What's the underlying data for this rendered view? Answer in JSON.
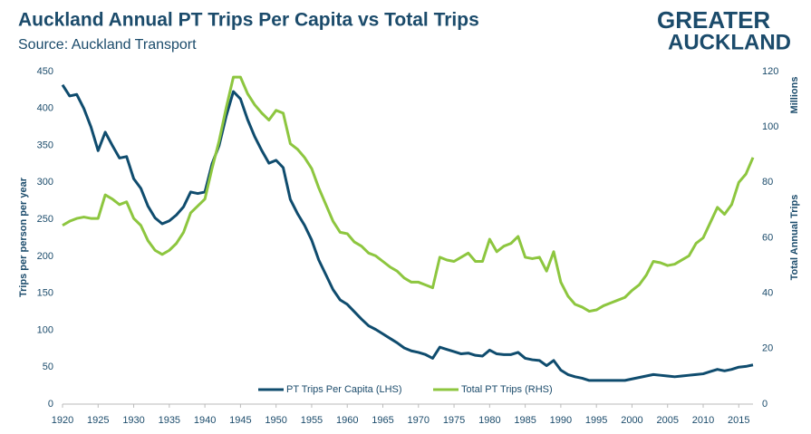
{
  "chart_data": {
    "type": "line",
    "title": "Auckland Annual PT Trips Per Capita vs Total Trips",
    "subtitle": "Source: Auckland Transport",
    "logo": [
      "GREATER",
      "AUCKLAND"
    ],
    "y_label": "Trips per person per year",
    "y2_label": "Total Annual Trips",
    "y2_unit": "Millions",
    "legend": "bottom",
    "grid": false,
    "x": [
      1920,
      1921,
      1922,
      1923,
      1924,
      1925,
      1926,
      1927,
      1928,
      1929,
      1930,
      1931,
      1932,
      1933,
      1934,
      1935,
      1936,
      1937,
      1938,
      1939,
      1940,
      1941,
      1942,
      1943,
      1944,
      1945,
      1946,
      1947,
      1948,
      1949,
      1950,
      1951,
      1952,
      1953,
      1954,
      1955,
      1956,
      1957,
      1958,
      1959,
      1960,
      1961,
      1962,
      1963,
      1964,
      1965,
      1966,
      1967,
      1968,
      1969,
      1970,
      1971,
      1972,
      1973,
      1974,
      1975,
      1976,
      1977,
      1978,
      1979,
      1980,
      1981,
      1982,
      1983,
      1984,
      1985,
      1986,
      1987,
      1988,
      1989,
      1990,
      1991,
      1992,
      1993,
      1994,
      1995,
      1996,
      1997,
      1998,
      1999,
      2000,
      2001,
      2002,
      2003,
      2004,
      2005,
      2006,
      2007,
      2008,
      2009,
      2010,
      2011,
      2012,
      2013,
      2014,
      2015,
      2016,
      2017
    ],
    "xlim": [
      1920,
      2017
    ],
    "xticks": [
      1920,
      1925,
      1930,
      1935,
      1940,
      1945,
      1950,
      1955,
      1960,
      1965,
      1970,
      1975,
      1980,
      1985,
      1990,
      1995,
      2000,
      2005,
      2010,
      2015
    ],
    "ylim": [
      0,
      450
    ],
    "yticks": [
      0,
      50,
      100,
      150,
      200,
      250,
      300,
      350,
      400,
      450
    ],
    "y2lim": [
      0,
      120
    ],
    "y2ticks": [
      0,
      20,
      40,
      60,
      80,
      100,
      120
    ],
    "series": [
      {
        "name": "PT Trips Per Capita (LHS)",
        "color": "#0f4c6e",
        "axis": "y",
        "values": [
          432,
          417,
          419,
          400,
          375,
          343,
          368,
          350,
          333,
          335,
          305,
          292,
          268,
          252,
          244,
          248,
          256,
          267,
          287,
          285,
          287,
          325,
          350,
          390,
          423,
          413,
          385,
          362,
          343,
          326,
          330,
          320,
          277,
          258,
          242,
          222,
          195,
          175,
          155,
          141,
          135,
          125,
          115,
          106,
          101,
          95,
          89,
          83,
          76,
          72,
          70,
          67,
          62,
          77,
          74,
          71,
          68,
          69,
          66,
          65,
          73,
          68,
          67,
          67,
          70,
          62,
          60,
          59,
          52,
          59,
          46,
          40,
          37,
          35,
          32,
          32,
          32,
          32,
          32,
          32,
          34,
          36,
          38,
          40,
          39,
          38,
          37,
          38,
          39,
          40,
          41,
          44,
          47,
          45,
          47,
          50,
          51,
          53
        ]
      },
      {
        "name": "Total PT Trips (RHS)",
        "color": "#8dc63f",
        "axis": "y2",
        "values": [
          64.5,
          66,
          67,
          67.5,
          67,
          67,
          75.5,
          74,
          72,
          73,
          67,
          64.5,
          59,
          55.5,
          54,
          55.5,
          58,
          62,
          69,
          71.5,
          74,
          85,
          95,
          107,
          118,
          118,
          112,
          108,
          105,
          102.5,
          106,
          105,
          94,
          92,
          89,
          85,
          78,
          72,
          66,
          62,
          61.5,
          58.5,
          57,
          54.5,
          53.5,
          51.5,
          49.5,
          48,
          45.5,
          44,
          44,
          43,
          42,
          53,
          52,
          51.5,
          53,
          54.5,
          51.5,
          51.5,
          59.5,
          55,
          57,
          58,
          60.5,
          53,
          52.5,
          53,
          48,
          55,
          44,
          39,
          36,
          35,
          33.5,
          34,
          35.5,
          36.5,
          37.5,
          38.5,
          41,
          43,
          46.5,
          51.5,
          51,
          50,
          50.5,
          52,
          53.5,
          58,
          60,
          65.5,
          71,
          68.5,
          72,
          80,
          83,
          89
        ]
      }
    ]
  }
}
